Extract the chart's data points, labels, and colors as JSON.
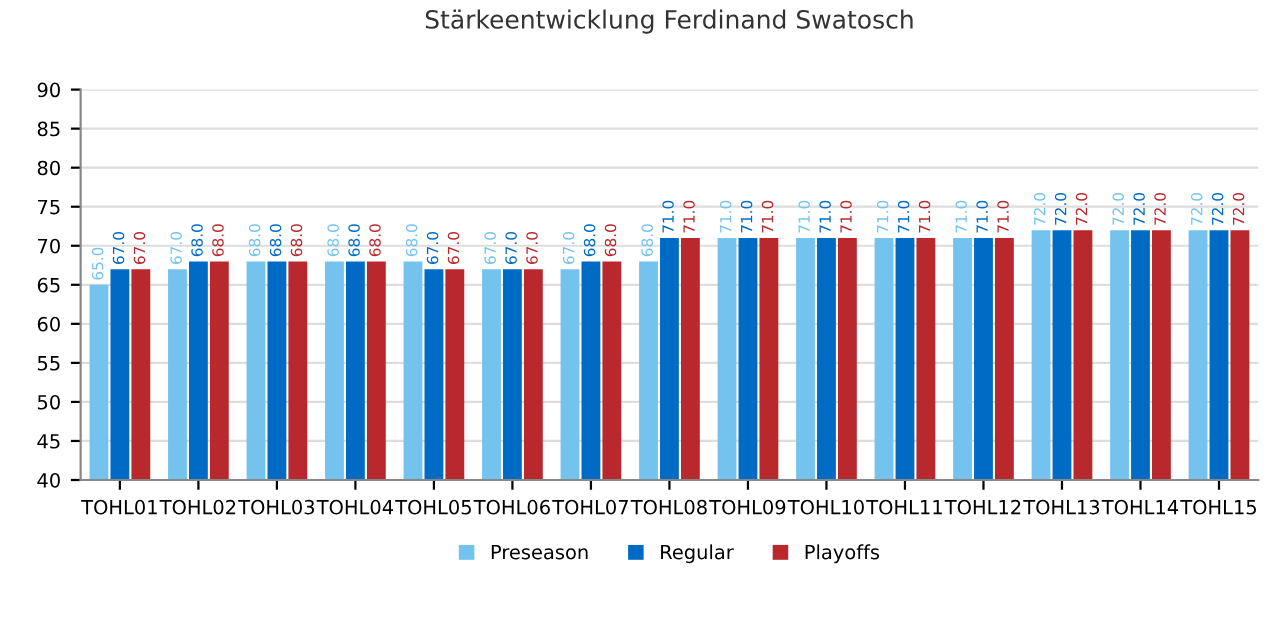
{
  "chart_data": {
    "type": "bar",
    "title": "Stärkeentwicklung Ferdinand Swatosch",
    "categories": [
      "TOHL01",
      "TOHL02",
      "TOHL03",
      "TOHL04",
      "TOHL05",
      "TOHL06",
      "TOHL07",
      "TOHL08",
      "TOHL09",
      "TOHL10",
      "TOHL11",
      "TOHL12",
      "TOHL13",
      "TOHL14",
      "TOHL15"
    ],
    "series": [
      {
        "name": "Preseason",
        "color": "#74c3ef",
        "values": [
          65,
          67,
          68,
          68,
          68,
          67,
          67,
          68,
          71,
          71,
          71,
          71,
          72,
          72,
          72
        ],
        "value_labels": [
          "65.0",
          "67.0",
          "68.0",
          "68.0",
          "68.0",
          "67.0",
          "67.0",
          "68.0",
          "71.0",
          "71.0",
          "71.0",
          "71.0",
          "72.0",
          "72.0",
          "72.0"
        ]
      },
      {
        "name": "Regular",
        "color": "#006bc5",
        "values": [
          67,
          68,
          68,
          68,
          67,
          67,
          68,
          71,
          71,
          71,
          71,
          71,
          72,
          72,
          72
        ],
        "value_labels": [
          "67.0",
          "68.0",
          "68.0",
          "68.0",
          "67.0",
          "67.0",
          "68.0",
          "71.0",
          "71.0",
          "71.0",
          "71.0",
          "71.0",
          "72.0",
          "72.0",
          "72.0"
        ]
      },
      {
        "name": "Playoffs",
        "color": "#b8282c",
        "values": [
          67,
          68,
          68,
          68,
          67,
          67,
          68,
          71,
          71,
          71,
          71,
          71,
          72,
          72,
          72
        ],
        "value_labels": [
          "67.0",
          "68.0",
          "68.0",
          "68.0",
          "67.0",
          "67.0",
          "68.0",
          "71.0",
          "71.0",
          "71.0",
          "71.0",
          "71.0",
          "72.0",
          "72.0",
          "72.0"
        ]
      }
    ],
    "ylim": [
      40,
      90
    ],
    "yticks": [
      40,
      45,
      50,
      55,
      60,
      65,
      70,
      75,
      80,
      85,
      90
    ],
    "grid": "y",
    "legend": "bottom"
  }
}
